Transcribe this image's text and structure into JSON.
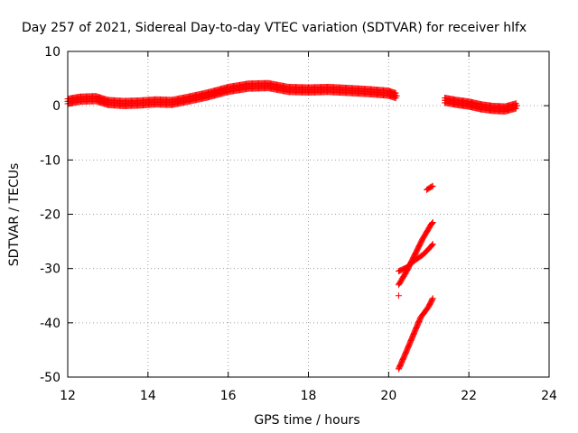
{
  "chart_data": {
    "type": "scatter",
    "title": "Day 257 of 2021, Sidereal Day-to-day VTEC variation (SDTVAR) for receiver hlfx",
    "xlabel": "GPS time / hours",
    "ylabel": "SDTVAR / TECUs",
    "xlim": [
      12,
      24
    ],
    "ylim": [
      -50,
      10
    ],
    "xticks": [
      12,
      14,
      16,
      18,
      20,
      22,
      24
    ],
    "yticks": [
      -50,
      -40,
      -30,
      -20,
      -10,
      0,
      10
    ],
    "grid": true,
    "marker": "+",
    "color": "#ff0000",
    "series": [
      {
        "x": [
          12.0,
          12.3,
          12.7,
          13.0,
          13.4,
          13.8,
          14.2,
          14.6,
          15.0,
          15.5,
          16.0,
          16.5,
          17.0,
          17.5,
          18.0,
          18.5,
          19.0,
          19.5,
          20.0,
          20.2
        ],
        "y": [
          0.8,
          1.2,
          1.3,
          0.6,
          0.4,
          0.5,
          0.7,
          0.6,
          1.2,
          2.0,
          3.0,
          3.6,
          3.7,
          3.0,
          2.9,
          3.0,
          2.8,
          2.6,
          2.3,
          1.8
        ]
      },
      {
        "x": [
          21.4,
          21.7,
          22.0,
          22.3,
          22.6,
          22.9,
          23.2
        ],
        "y": [
          1.0,
          0.6,
          0.3,
          -0.2,
          -0.5,
          -0.6,
          0.0
        ]
      },
      {
        "x": [
          20.25,
          20.4,
          20.6,
          20.8,
          21.0,
          21.1
        ],
        "y": [
          -48.5,
          -46.0,
          -42.5,
          -39.0,
          -37.0,
          -35.5
        ]
      },
      {
        "x": [
          20.25,
          20.45,
          20.65,
          20.85,
          21.05,
          21.1
        ],
        "y": [
          -33.0,
          -30.5,
          -27.5,
          -24.5,
          -22.0,
          -21.5
        ]
      },
      {
        "x": [
          20.25,
          20.45,
          20.65,
          20.85,
          21.05,
          21.1
        ],
        "y": [
          -30.5,
          -29.8,
          -28.5,
          -27.5,
          -26.0,
          -25.5
        ]
      },
      {
        "x": [
          20.95,
          21.05,
          21.1
        ],
        "y": [
          -15.5,
          -15.0,
          -14.8
        ]
      },
      {
        "x": [
          20.25
        ],
        "y": [
          -35.0
        ]
      }
    ]
  }
}
